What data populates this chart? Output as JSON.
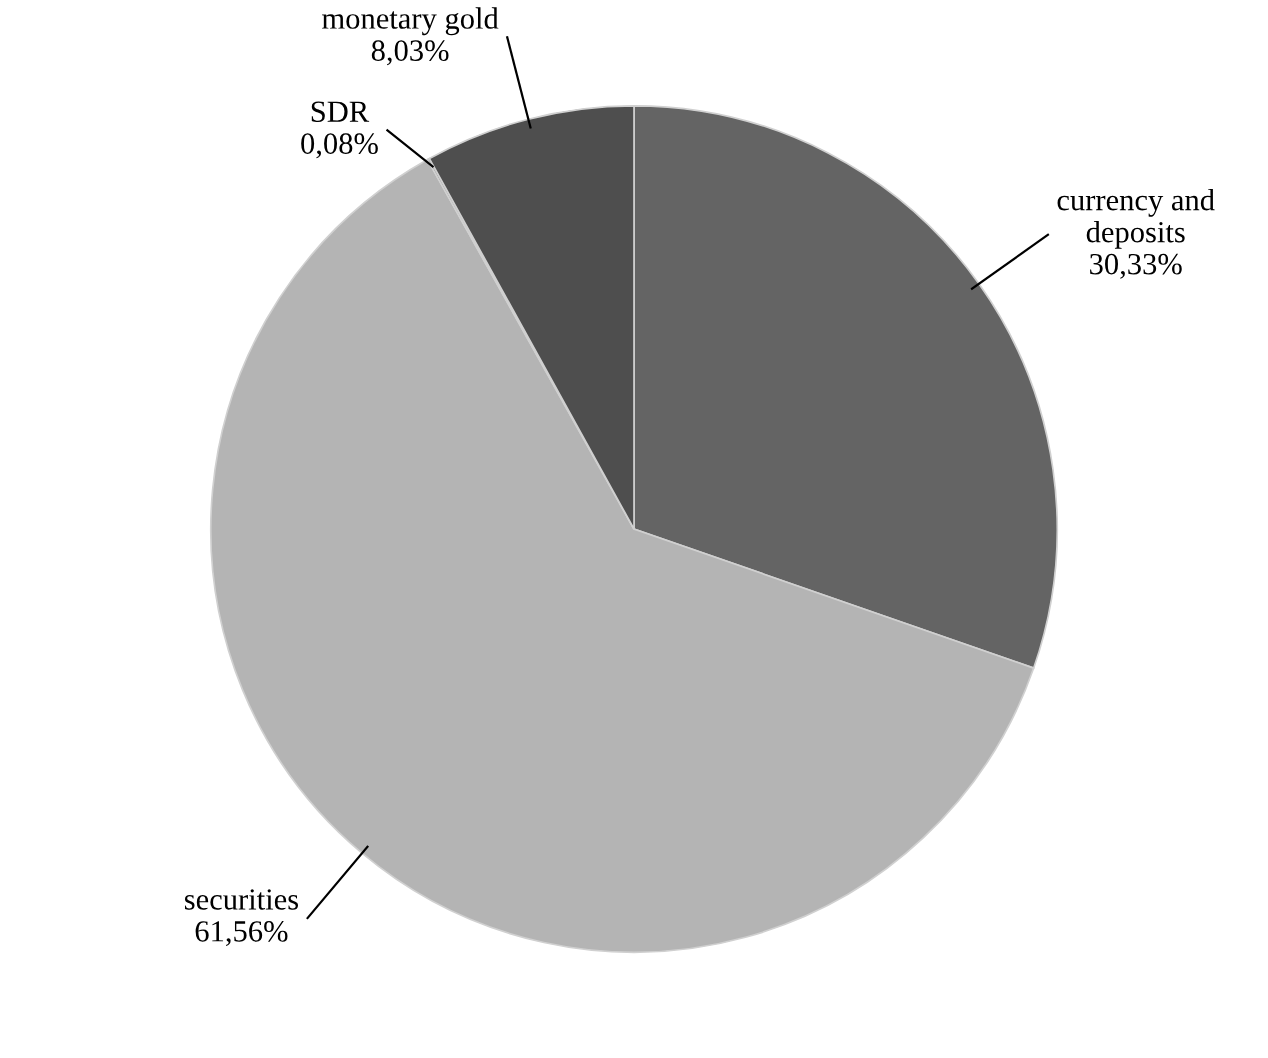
{
  "chart_data": {
    "type": "pie",
    "categories": [
      "currency and\ndeposits",
      "securities",
      "SDR",
      "monetary gold"
    ],
    "values": [
      30.33,
      61.56,
      0.08,
      8.03
    ],
    "colors": [
      "#646464",
      "#b4b4b4",
      "#8c8c8c",
      "#4e4e4e"
    ],
    "value_labels": [
      "30,33%",
      "61,56%",
      "0,08%",
      "8,03%"
    ]
  }
}
